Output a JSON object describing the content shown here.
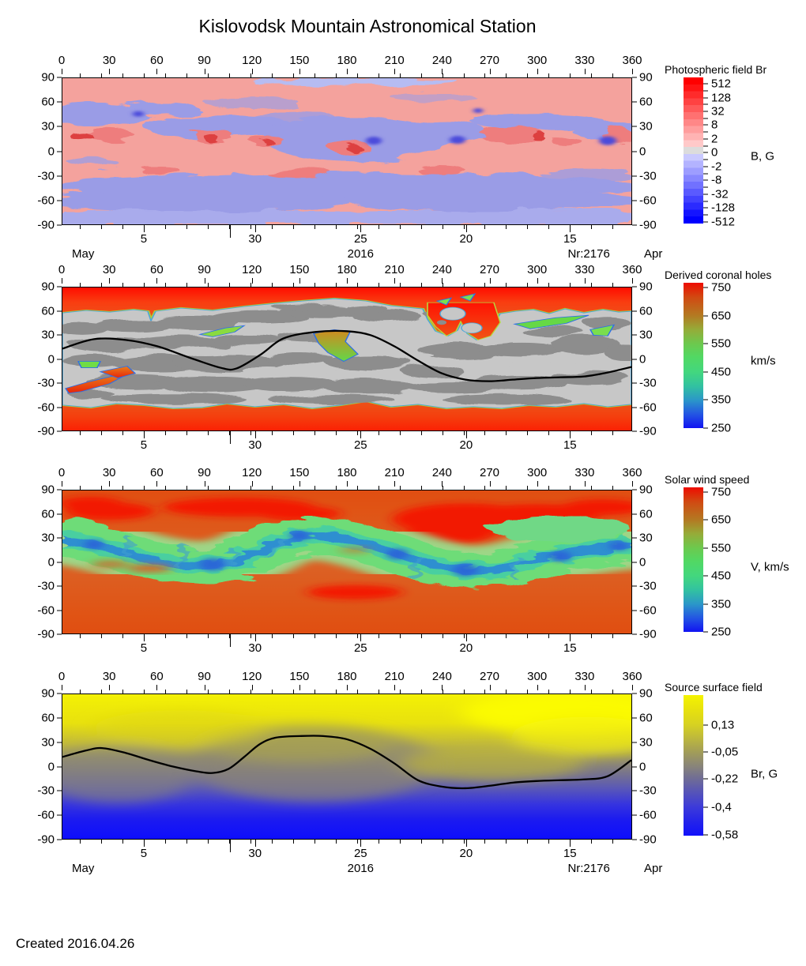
{
  "page": {
    "title": "Kislovodsk Mountain Astronomical Station",
    "created": "Created  2016.04.26"
  },
  "axes": {
    "lon_labels": [
      "0",
      "30",
      "60",
      "90",
      "120",
      "150",
      "180",
      "210",
      "240",
      "270",
      "300",
      "330",
      "360"
    ],
    "lat_labels": [
      "90",
      "60",
      "30",
      "0",
      "-30",
      "-60",
      "-90"
    ],
    "date_ticks": [
      {
        "label": "5",
        "pct": 14.4
      },
      {
        "label": "30",
        "pct": 33.9
      },
      {
        "label": "25",
        "pct": 52.4
      },
      {
        "label": "20",
        "pct": 70.9
      },
      {
        "label": "15",
        "pct": 89.1
      }
    ],
    "month_tick_pct": 29.5,
    "footer": {
      "left": "May",
      "year": "2016",
      "rotation": "Nr:2176",
      "right": "Apr"
    }
  },
  "colorbars": [
    {
      "title": "Photospheric field Br",
      "unit": "B, G",
      "ticks": [
        {
          "label": "512",
          "pct": 4.3
        },
        {
          "label": "",
          "pct": 9.0
        },
        {
          "label": "128",
          "pct": 13.8
        },
        {
          "label": "",
          "pct": 18.5
        },
        {
          "label": "32",
          "pct": 23.2
        },
        {
          "label": "",
          "pct": 27.9
        },
        {
          "label": "8",
          "pct": 32.7
        },
        {
          "label": "",
          "pct": 37.4
        },
        {
          "label": "2",
          "pct": 42.1
        },
        {
          "label": "",
          "pct": 46.9
        },
        {
          "label": "0",
          "pct": 51.6
        },
        {
          "label": "",
          "pct": 56.3
        },
        {
          "label": "-2",
          "pct": 61.1
        },
        {
          "label": "",
          "pct": 65.8
        },
        {
          "label": "-8",
          "pct": 70.5
        },
        {
          "label": "",
          "pct": 75.2
        },
        {
          "label": "-32",
          "pct": 80.0
        },
        {
          "label": "",
          "pct": 84.7
        },
        {
          "label": "-128",
          "pct": 89.4
        },
        {
          "label": "",
          "pct": 94.2
        },
        {
          "label": "-512",
          "pct": 98.9
        }
      ]
    },
    {
      "title": "Derived coronal holes",
      "unit": "km/s",
      "ticks": [
        {
          "label": "750",
          "pct": 3.3
        },
        {
          "label": "650",
          "pct": 22.6
        },
        {
          "label": "550",
          "pct": 42.0
        },
        {
          "label": "450",
          "pct": 61.3
        },
        {
          "label": "350",
          "pct": 80.7
        },
        {
          "label": "250",
          "pct": 100.0
        }
      ]
    },
    {
      "title": "Solar wind speed",
      "unit": "V, km/s",
      "ticks": [
        {
          "label": "750",
          "pct": 3.3
        },
        {
          "label": "650",
          "pct": 22.6
        },
        {
          "label": "550",
          "pct": 42.0
        },
        {
          "label": "450",
          "pct": 61.3
        },
        {
          "label": "350",
          "pct": 80.7
        },
        {
          "label": "250",
          "pct": 100.0
        }
      ]
    },
    {
      "title": "Source surface field",
      "unit": "Br, G",
      "ticks": [
        {
          "label": "0,13",
          "pct": 21.3
        },
        {
          "label": "-0,05",
          "pct": 40.4
        },
        {
          "label": "-0,22",
          "pct": 59.6
        },
        {
          "label": "-0,4",
          "pct": 79.8
        },
        {
          "label": "-0,58",
          "pct": 99.4
        }
      ]
    }
  ],
  "chart_data": [
    {
      "type": "heatmap",
      "panel": "Photospheric field Br",
      "x_range": [
        0,
        360
      ],
      "y_range": [
        -90,
        90
      ],
      "x_ticks": [
        0,
        30,
        60,
        90,
        120,
        150,
        180,
        210,
        240,
        270,
        300,
        330,
        360
      ],
      "y_ticks": [
        90,
        60,
        30,
        0,
        -30,
        -60,
        -90
      ],
      "date_axis": {
        "month_start": "May",
        "day_labels": [
          5,
          30,
          25,
          20,
          15
        ],
        "year": "2016",
        "rotation": "Nr:2176",
        "month_end": "Apr"
      },
      "colorbar": {
        "unit": "B, G",
        "tick_values": [
          512,
          128,
          32,
          8,
          2,
          0,
          -2,
          -8,
          -32,
          -128,
          -512
        ],
        "palette": "diverging stepped red (positive) to blue (negative)"
      },
      "description": "Mottled synoptic magnetogram: salmon/red positive-polarity regions and lavender/blue negative-polarity regions with strong red and dark-blue flux spots near the activity belts"
    },
    {
      "type": "heatmap",
      "panel": "Derived coronal holes",
      "x_range": [
        0,
        360
      ],
      "y_range": [
        -90,
        90
      ],
      "x_ticks": [
        0,
        30,
        60,
        90,
        120,
        150,
        180,
        210,
        240,
        270,
        300,
        330,
        360
      ],
      "y_ticks": [
        90,
        60,
        30,
        0,
        -30,
        -60,
        -90
      ],
      "colorbar": {
        "unit": "km/s",
        "tick_values": [
          750,
          650,
          550,
          450,
          350,
          250
        ],
        "palette": "blue-green-orange-red rainbow"
      },
      "neutral_line": [
        [
          0,
          13
        ],
        [
          20,
          25
        ],
        [
          40,
          24
        ],
        [
          60,
          16
        ],
        [
          80,
          2
        ],
        [
          100,
          -11
        ],
        [
          110,
          -12
        ],
        [
          125,
          5
        ],
        [
          140,
          26
        ],
        [
          160,
          34
        ],
        [
          180,
          35
        ],
        [
          195,
          30
        ],
        [
          210,
          16
        ],
        [
          225,
          -2
        ],
        [
          240,
          -18
        ],
        [
          255,
          -26
        ],
        [
          270,
          -28
        ],
        [
          285,
          -26
        ],
        [
          300,
          -24
        ],
        [
          315,
          -23
        ],
        [
          330,
          -22
        ],
        [
          345,
          -17
        ],
        [
          360,
          -10
        ]
      ],
      "description": "Gray closed-field band across mid latitudes, red high-speed polar open-field caps, small green/orange/red coronal holes outlined in blue, red open-field intrusion near longitude 230-275 north, black magnetic neutral line"
    },
    {
      "type": "heatmap",
      "panel": "Solar wind speed",
      "x_range": [
        0,
        360
      ],
      "y_range": [
        -90,
        90
      ],
      "x_ticks": [
        0,
        30,
        60,
        90,
        120,
        150,
        180,
        210,
        240,
        270,
        300,
        330,
        360
      ],
      "y_ticks": [
        90,
        60,
        30,
        0,
        -30,
        -60,
        -90
      ],
      "colorbar": {
        "unit": "V, km/s",
        "tick_values": [
          750,
          650,
          550,
          450,
          350,
          250
        ],
        "palette": "blue-green-orange-red rainbow"
      },
      "description": "Orange/red fast-wind background with an undulating green slow-wind belt along the heliospheric current sheet; teal-blue lowest-speed core channel; bright red fast patches near the poles and around longitude 230-300 north"
    },
    {
      "type": "heatmap",
      "panel": "Source surface field",
      "x_range": [
        0,
        360
      ],
      "y_range": [
        -90,
        90
      ],
      "x_ticks": [
        0,
        30,
        60,
        90,
        120,
        150,
        180,
        210,
        240,
        270,
        300,
        330,
        360
      ],
      "y_ticks": [
        90,
        60,
        30,
        0,
        -30,
        -60,
        -90
      ],
      "date_axis": {
        "month_start": "May",
        "day_labels": [
          5,
          30,
          25,
          20,
          15
        ],
        "year": "2016",
        "rotation": "Nr:2176",
        "month_end": "Apr"
      },
      "colorbar": {
        "unit": "Br, G",
        "tick_values": [
          "0,13",
          "-0,05",
          "-0,22",
          "-0,4",
          "-0,58"
        ],
        "palette": "yellow (positive) through gray to blue (negative)"
      },
      "neutral_line": [
        [
          0,
          12
        ],
        [
          15,
          20
        ],
        [
          25,
          23
        ],
        [
          40,
          17
        ],
        [
          55,
          8
        ],
        [
          70,
          0
        ],
        [
          85,
          -6
        ],
        [
          95,
          -8
        ],
        [
          105,
          -3
        ],
        [
          115,
          12
        ],
        [
          125,
          28
        ],
        [
          135,
          36
        ],
        [
          150,
          38
        ],
        [
          165,
          38
        ],
        [
          180,
          34
        ],
        [
          195,
          22
        ],
        [
          210,
          4
        ],
        [
          225,
          -17
        ],
        [
          240,
          -25
        ],
        [
          255,
          -27
        ],
        [
          270,
          -24
        ],
        [
          285,
          -20
        ],
        [
          300,
          -18
        ],
        [
          315,
          -17
        ],
        [
          330,
          -16
        ],
        [
          345,
          -12
        ],
        [
          360,
          8
        ]
      ],
      "description": "Smooth source-surface field: yellow positive north, blue negative south, gray transition along the black neutral line; brightest yellow at upper right"
    }
  ]
}
